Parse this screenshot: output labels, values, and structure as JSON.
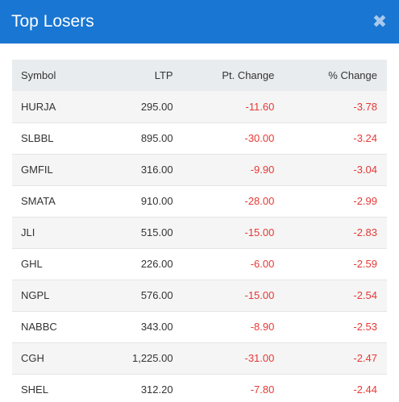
{
  "header": {
    "title": "Top Losers",
    "close_glyph": "✖"
  },
  "table": {
    "columns": [
      "Symbol",
      "LTP",
      "Pt. Change",
      "% Change"
    ],
    "rows": [
      {
        "symbol": "HURJA",
        "ltp": "295.00",
        "pt_change": "-11.60",
        "pct_change": "-3.78"
      },
      {
        "symbol": "SLBBL",
        "ltp": "895.00",
        "pt_change": "-30.00",
        "pct_change": "-3.24"
      },
      {
        "symbol": "GMFIL",
        "ltp": "316.00",
        "pt_change": "-9.90",
        "pct_change": "-3.04"
      },
      {
        "symbol": "SMATA",
        "ltp": "910.00",
        "pt_change": "-28.00",
        "pct_change": "-2.99"
      },
      {
        "symbol": "JLI",
        "ltp": "515.00",
        "pt_change": "-15.00",
        "pct_change": "-2.83"
      },
      {
        "symbol": "GHL",
        "ltp": "226.00",
        "pt_change": "-6.00",
        "pct_change": "-2.59"
      },
      {
        "symbol": "NGPL",
        "ltp": "576.00",
        "pt_change": "-15.00",
        "pct_change": "-2.54"
      },
      {
        "symbol": "NABBC",
        "ltp": "343.00",
        "pt_change": "-8.90",
        "pct_change": "-2.53"
      },
      {
        "symbol": "CGH",
        "ltp": "1,225.00",
        "pt_change": "-31.00",
        "pct_change": "-2.47"
      },
      {
        "symbol": "SHEL",
        "ltp": "312.20",
        "pt_change": "-7.80",
        "pct_change": "-2.44"
      }
    ]
  },
  "colors": {
    "header_bg": "#1976d2",
    "negative": "#e53935"
  }
}
